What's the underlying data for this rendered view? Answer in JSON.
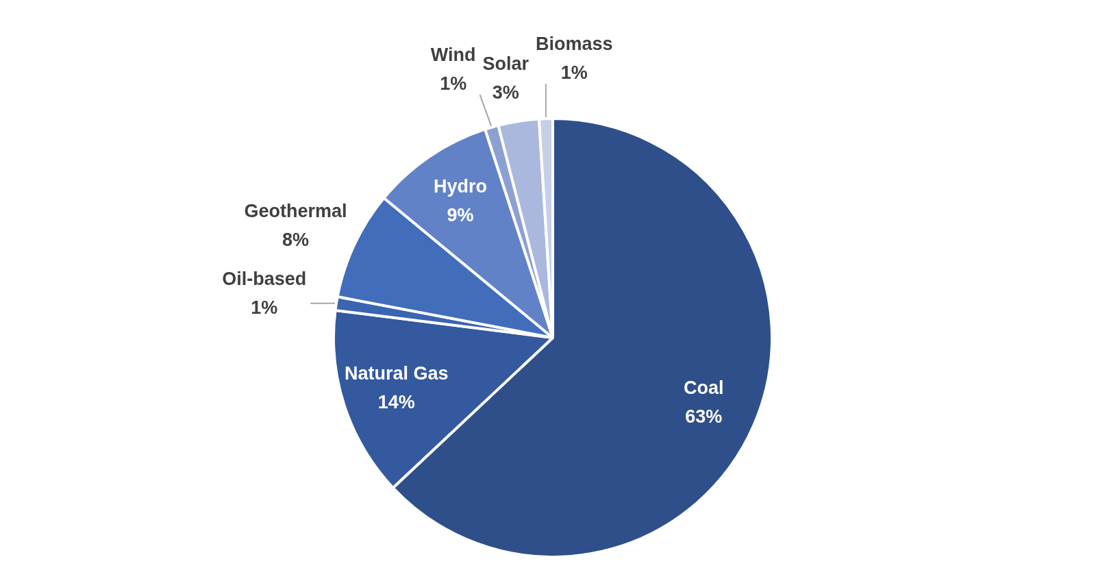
{
  "chart_data": {
    "type": "pie",
    "categories": [
      "Coal",
      "Natural Gas",
      "Oil-based",
      "Geothermal",
      "Hydro",
      "Wind",
      "Solar",
      "Biomass"
    ],
    "values": [
      63,
      14,
      1,
      8,
      9,
      1,
      3,
      1
    ],
    "value_labels": [
      "63%",
      "14%",
      "1%",
      "8%",
      "9%",
      "1%",
      "3%",
      "1%"
    ],
    "colors": [
      "#2f4f8a",
      "#34599e",
      "#3b64b2",
      "#416dbb",
      "#6282c8",
      "#8ca0d4",
      "#aab8de",
      "#c5cfe8"
    ]
  }
}
